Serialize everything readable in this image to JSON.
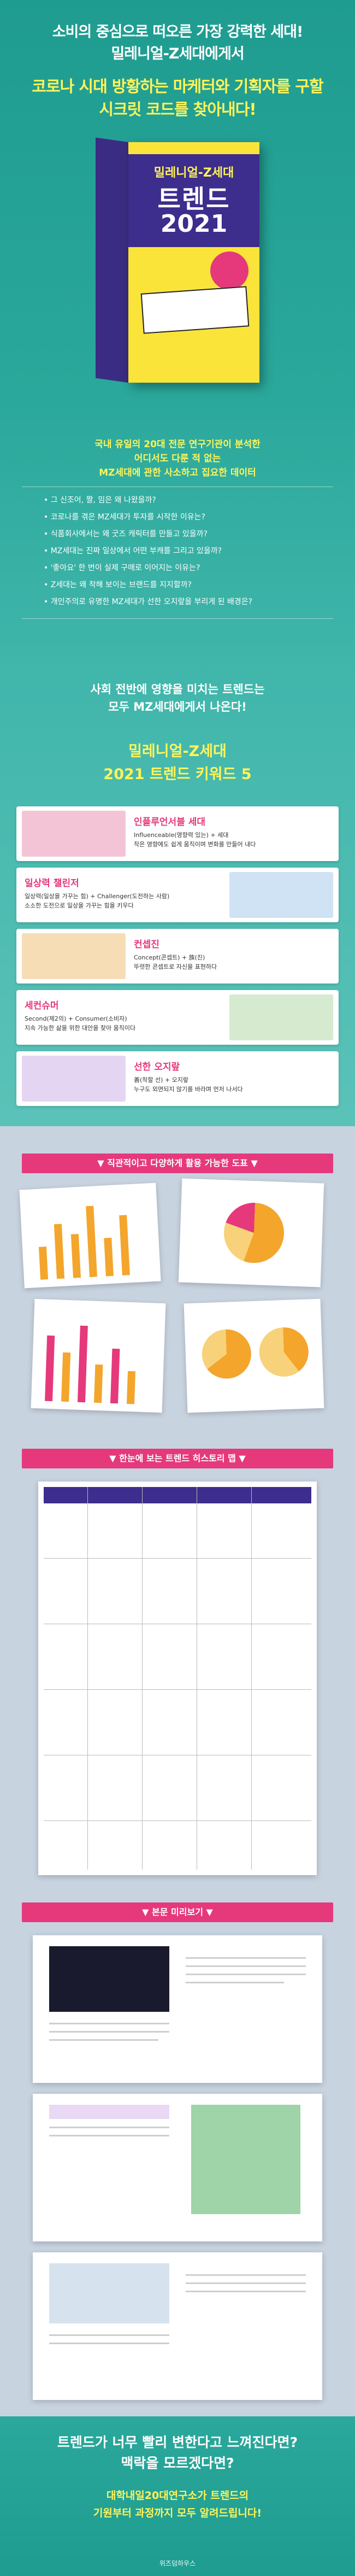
{
  "header": {
    "lines": [
      "소비의 중심으로 떠오른 가장 강력한 세대!",
      "밀레니얼-Z세대에게서"
    ],
    "highlight": [
      "코로나 시대 방황하는 마케터와 기획자를 구할",
      "시크릿 코드를 찾아내다!"
    ]
  },
  "book": {
    "title": "밀레니얼-Z세대",
    "subtitle": "트렌드",
    "year": "2021"
  },
  "data_section": {
    "intro": [
      "국내 유일의 20대 전문 연구기관이 분석한",
      "어디서도 다룬 적 없는",
      "MZ세대에 관한 사소하고 집요한 데이터"
    ],
    "bullets": [
      "• 그 신조어, 짤, 밈은 왜 나왔을까?",
      "• 코로나를 겪은 MZ세대가 투자를 시작한 이유는?",
      "• 식품회사에서는 왜 굿즈 캐릭터를 만들고 있을까?",
      "• MZ세대는 진짜 일상에서 어떤 부캐를 그리고 있을까?",
      "• '좋아요' 한 번이 실제 구매로 이어지는 이유는?",
      "• Z세대는 왜 착해 보이는 브랜드를 지지할까?",
      "• 개인주의로 유명한 MZ세대가 선한 오지랖을 부리게 된 배경은?"
    ],
    "conclusion": [
      "사회 전반에 영향을 미치는 트렌드는",
      "모두 MZ세대에게서 나온다!"
    ]
  },
  "keywords": {
    "title": [
      "밀레니얼-Z세대",
      "2021 트렌드 키워드 5"
    ],
    "items": [
      {
        "name": "인플루언서블 세대",
        "desc": "Influenceable(영향력 있는) + 세대\n작은 영향에도 쉽게 움직이며 변화를 만들어 내다"
      },
      {
        "name": "일상력 챌린저",
        "desc": "일상력(일상을 가꾸는 힘) + Challenger(도전하는 사람)\n소소한 도전으로 일상을 가꾸는 힘을 키우다"
      },
      {
        "name": "컨셉진",
        "desc": "Concept(콘셉트) + 族(진)\n뚜렷한 콘셉트로 자신을 표현하다"
      },
      {
        "name": "세컨슈머",
        "desc": "Second(제2의) + Consumer(소비자)\n지속 가능한 삶을 위한 대안을 찾아 움직이다"
      },
      {
        "name": "선한 오지랖",
        "desc": "善(착할 선) + 오지랖\n누구도 외면되지 않기를 바라며 먼저 나서다"
      }
    ]
  },
  "sections": {
    "charts": "▼ 직관적이고 다양하게 활용 가능한 도표 ▼",
    "history": "▼ 한눈에 보는 트렌드 히스토리 맵 ▼",
    "preview": "▼ 본문 미리보기 ▼"
  },
  "footer": {
    "lines": [
      "트렌드가 너무 빨리 변한다고 느껴진다면?",
      "맥락을 모르겠다면?"
    ],
    "highlight": [
      "대학내일20대연구소가 트렌드의",
      "기원부터 과정까지 모두 알려드립니다!"
    ],
    "publisher": "위즈덤하우스"
  }
}
